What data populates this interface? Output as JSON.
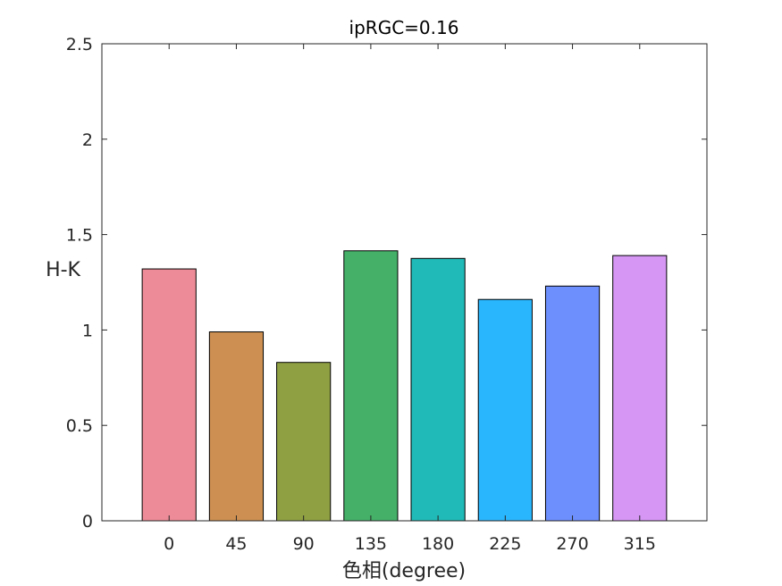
{
  "chart_data": {
    "type": "bar",
    "title": "ipRGC=0.16",
    "xlabel": "色相(degree)",
    "ylabel": "H-K",
    "categories": [
      "0",
      "45",
      "90",
      "135",
      "180",
      "225",
      "270",
      "315"
    ],
    "values": [
      1.32,
      0.99,
      0.83,
      1.415,
      1.375,
      1.16,
      1.23,
      1.39
    ],
    "bar_colors": [
      "#ed8c98",
      "#cd9052",
      "#8ea042",
      "#44b068",
      "#20bab8",
      "#2ab6fd",
      "#6d8ffe",
      "#d596f4"
    ],
    "ylim": [
      0,
      2.5
    ],
    "yticks": [
      "0",
      "0.5",
      "1",
      "1.5",
      "2",
      "2.5"
    ],
    "ytick_values": [
      0,
      0.5,
      1,
      1.5,
      2,
      2.5
    ],
    "grid": false,
    "legend": "none"
  }
}
